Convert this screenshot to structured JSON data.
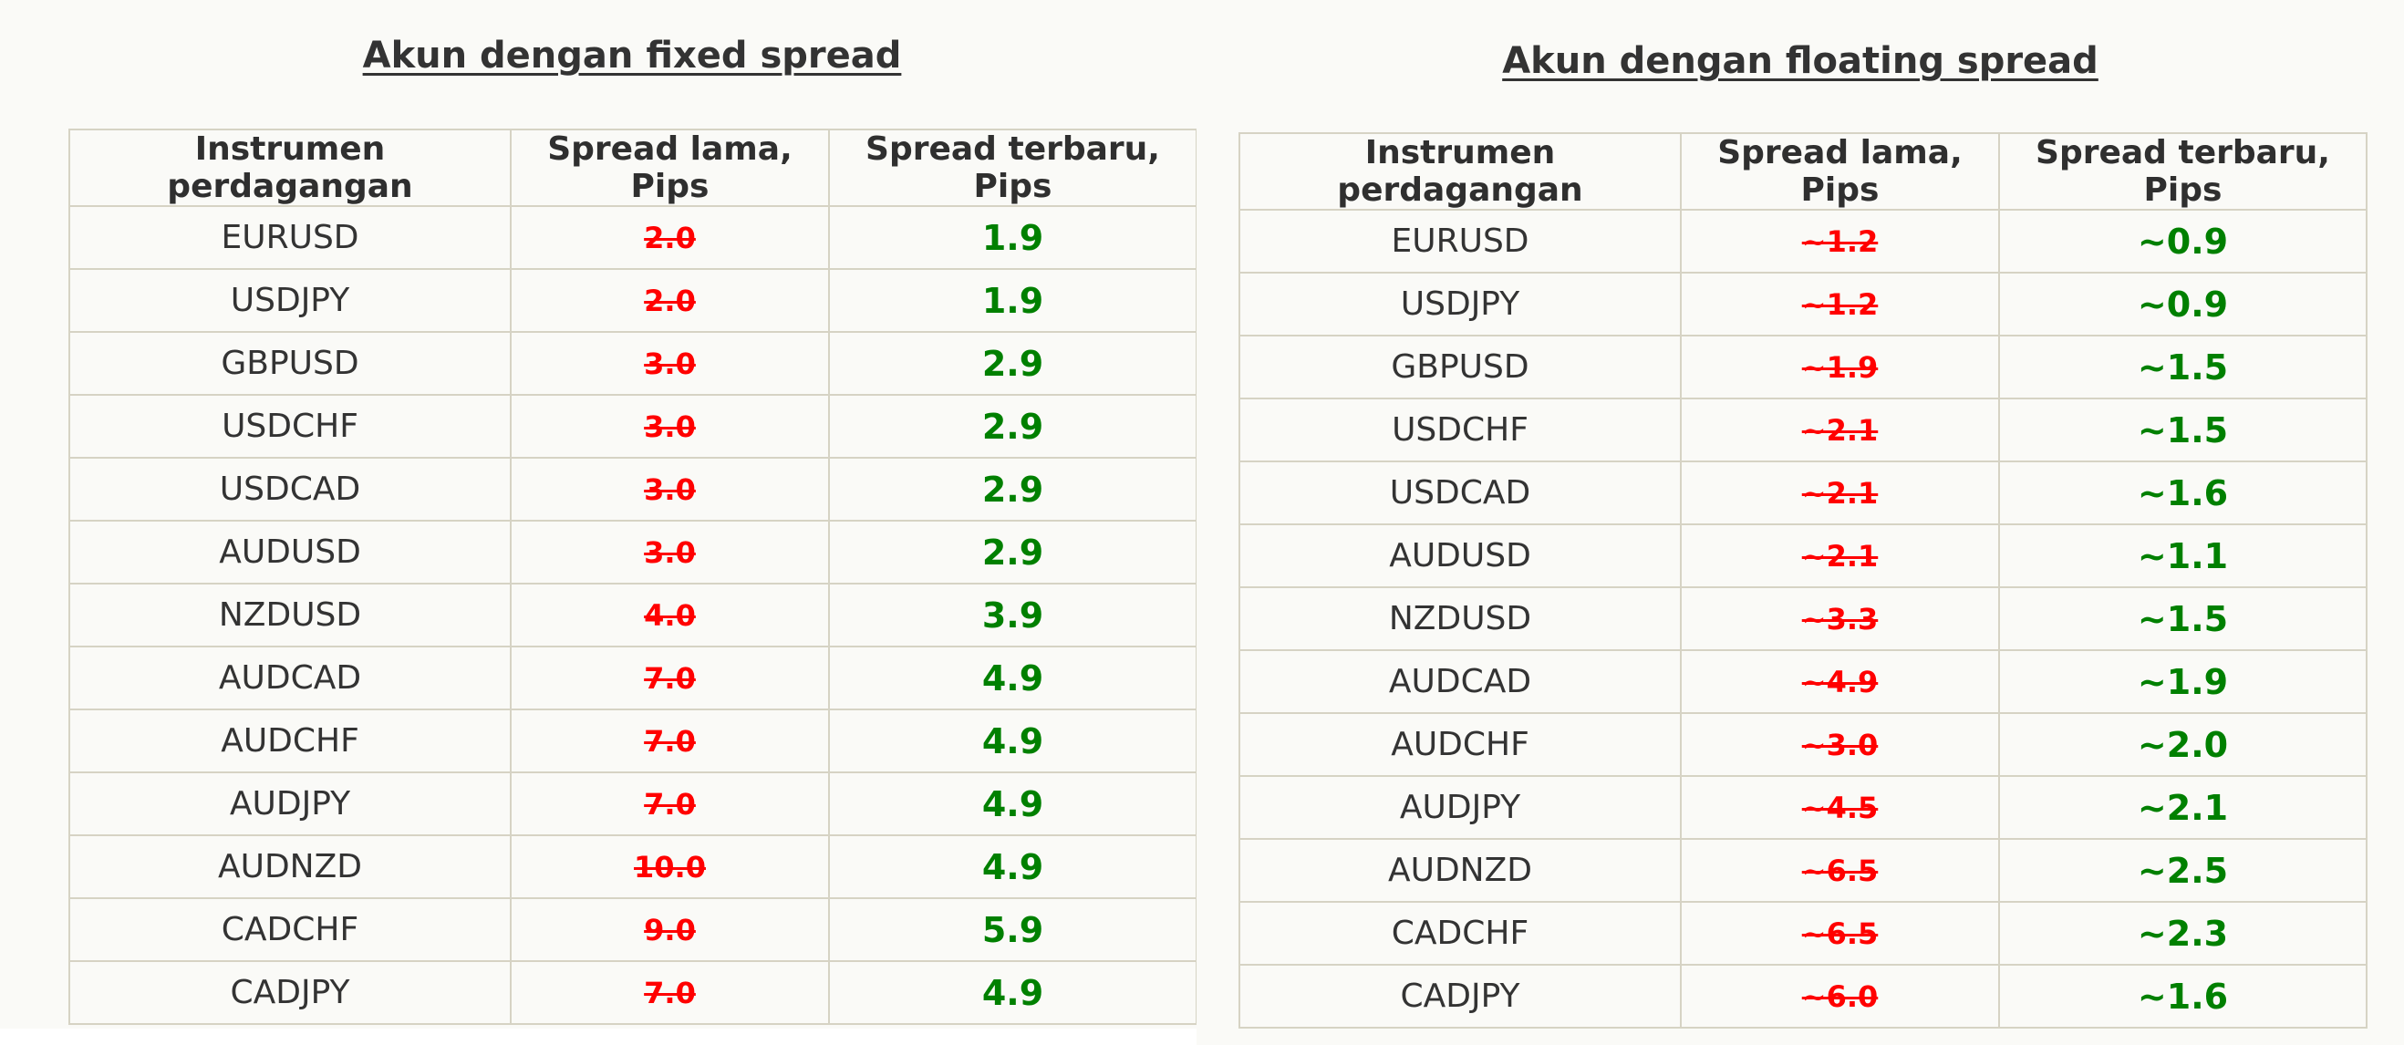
{
  "colors": {
    "background": "#fafaf7",
    "border": "#d6d3c4",
    "old_spread": "#ff0000",
    "new_spread": "#008000",
    "text": "#333333"
  },
  "fixed": {
    "title": "Akun dengan fixed spread",
    "headers": [
      "Instrumen perdagangan",
      "Spread lama, Pips",
      "Spread terbaru, Pips"
    ],
    "rows": [
      [
        "EURUSD",
        "2.0",
        "1.9"
      ],
      [
        "USDJPY",
        "2.0",
        "1.9"
      ],
      [
        "GBPUSD",
        "3.0",
        "2.9"
      ],
      [
        "USDCHF",
        "3.0",
        "2.9"
      ],
      [
        "USDCAD",
        "3.0",
        "2.9"
      ],
      [
        "AUDUSD",
        "3.0",
        "2.9"
      ],
      [
        "NZDUSD",
        "4.0",
        "3.9"
      ],
      [
        "AUDCAD",
        "7.0",
        "4.9"
      ],
      [
        "AUDCHF",
        "7.0",
        "4.9"
      ],
      [
        "AUDJPY",
        "7.0",
        "4.9"
      ],
      [
        "AUDNZD",
        "10.0",
        "4.9"
      ],
      [
        "CADCHF",
        "9.0",
        "5.9"
      ],
      [
        "CADJPY",
        "7.0",
        "4.9"
      ]
    ]
  },
  "floating": {
    "title": "Akun dengan floating spread",
    "headers": [
      "Instrumen perdagangan",
      "Spread lama, Pips",
      "Spread terbaru, Pips"
    ],
    "rows": [
      [
        "EURUSD",
        "~1.2",
        "~0.9"
      ],
      [
        "USDJPY",
        "~1.2",
        "~0.9"
      ],
      [
        "GBPUSD",
        "~1.9",
        "~1.5"
      ],
      [
        "USDCHF",
        "~2.1",
        "~1.5"
      ],
      [
        "USDCAD",
        "~2.1",
        "~1.6"
      ],
      [
        "AUDUSD",
        "~2.1",
        "~1.1"
      ],
      [
        "NZDUSD",
        "~3.3",
        "~1.5"
      ],
      [
        "AUDCAD",
        "~4.9",
        "~1.9"
      ],
      [
        "AUDCHF",
        "~3.0",
        "~2.0"
      ],
      [
        "AUDJPY",
        "~4.5",
        "~2.1"
      ],
      [
        "AUDNZD",
        "~6.5",
        "~2.5"
      ],
      [
        "CADCHF",
        "~6.5",
        "~2.3"
      ],
      [
        "CADJPY",
        "~6.0",
        "~1.6"
      ]
    ]
  }
}
